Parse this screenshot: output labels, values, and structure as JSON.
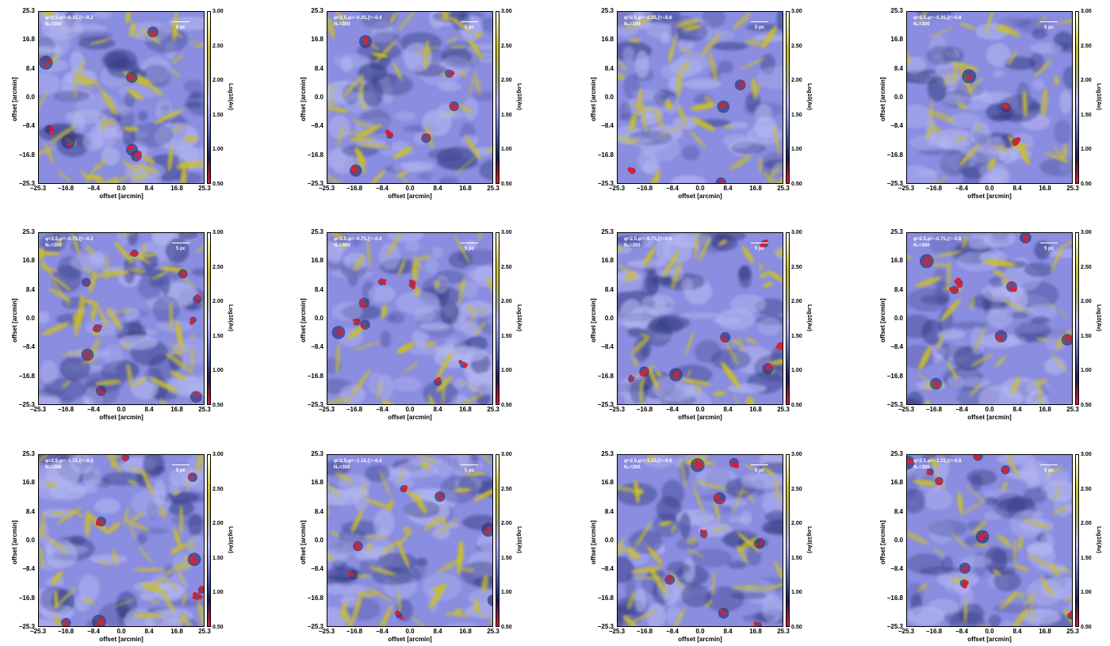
{
  "colors": {
    "base": "#8a8de0",
    "light": "#b3b6ef",
    "dark": "#2d357a",
    "filament": "#c9bf2c",
    "core": "#d8202f"
  },
  "axes": {
    "x_label": "offset [arcmin]",
    "y_label": "offset [arcmin]",
    "x_ticks": [
      "−25.3",
      "−16.8",
      "−8.4",
      "0.0",
      "8.4",
      "16.8",
      "25.3"
    ],
    "y_ticks": [
      "25.3",
      "16.8",
      "8.4",
      "0.0",
      "−8.4",
      "−16.8",
      "−25.3"
    ]
  },
  "colorbar": {
    "label": "Log10(Av)",
    "ticks": [
      "3.00",
      "2.50",
      "2.00",
      "1.50",
      "1.00",
      "0.50"
    ]
  },
  "scale_bar_label": "5 pc",
  "panels": [
    {
      "params": "φ=2.5,φ=−0.35,ξ=−0.2",
      "n": "N₀=300",
      "yellow": 0.9,
      "red": 0.5
    },
    {
      "params": "φ=2.5,φ=−0.35,ξ=−0.4",
      "n": "N₀=300",
      "yellow": 0.75,
      "red": 0.35
    },
    {
      "params": "φ=2.5,φ=−0.35,ξ=−0.6",
      "n": "N₀=300",
      "yellow": 0.6,
      "red": 0.15
    },
    {
      "params": "φ=2.5,φ=−0.35,ξ=−0.8",
      "n": "N₀=300",
      "yellow": 0.45,
      "red": 0.1
    },
    {
      "params": "φ=2.5,φ=−0.75,ξ=−0.2",
      "n": "N₀=300",
      "yellow": 0.9,
      "red": 0.7
    },
    {
      "params": "φ=2.5,φ=−0.75,ξ=−0.4",
      "n": "N₀=300",
      "yellow": 0.5,
      "red": 0.6
    },
    {
      "params": "φ=2.5,φ=−0.75,ξ=−0.6",
      "n": "N₀=300",
      "yellow": 0.55,
      "red": 0.5
    },
    {
      "params": "φ=2.5,φ=−0.75,ξ=−0.8",
      "n": "N₀=300",
      "yellow": 0.4,
      "red": 0.55
    },
    {
      "params": "φ=2.5,φ=−1.15,ξ=−0.2",
      "n": "N₀=300",
      "yellow": 0.95,
      "red": 0.6
    },
    {
      "params": "φ=2.5,φ=−1.15,ξ=−0.4",
      "n": "N₀=300",
      "yellow": 0.8,
      "red": 0.5
    },
    {
      "params": "φ=2.5,φ=−1.15,ξ=−0.6",
      "n": "N₀=300",
      "yellow": 0.65,
      "red": 0.6
    },
    {
      "params": "φ=2.5,φ=−1.15,ξ=−0.8",
      "n": "N₀=300",
      "yellow": 0.5,
      "red": 0.65
    }
  ]
}
